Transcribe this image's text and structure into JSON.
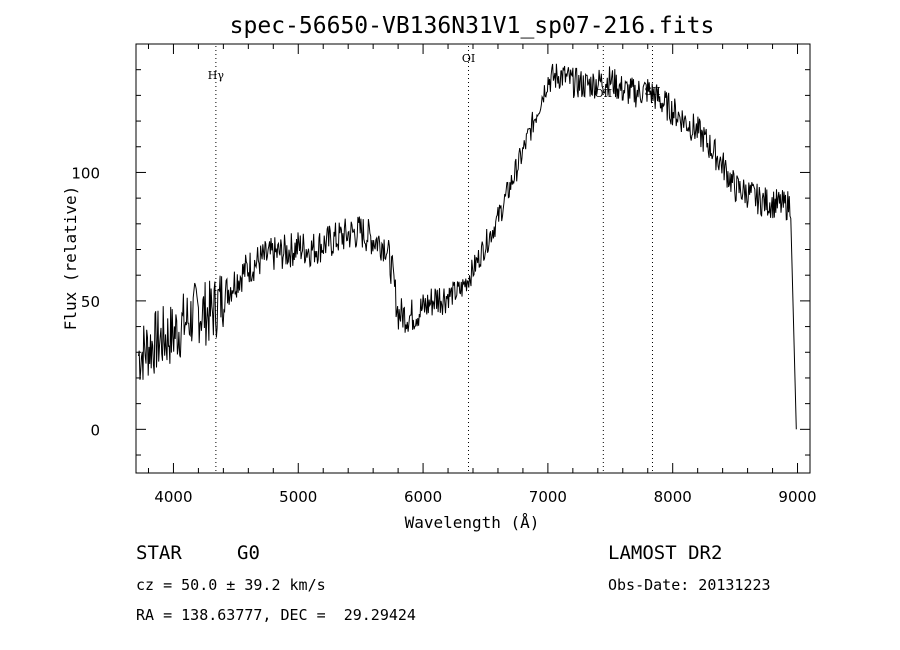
{
  "chart_data": {
    "type": "line",
    "title": "spec-56650-VB136N31V1_sp07-216.fits",
    "xlabel": "Wavelength (Å)",
    "ylabel": "Flux (relative)",
    "xlim": [
      3700,
      9100
    ],
    "ylim": [
      -17,
      150
    ],
    "x_ticks": [
      4000,
      5000,
      6000,
      7000,
      8000,
      9000
    ],
    "y_ticks": [
      0,
      50,
      100
    ],
    "grid": false,
    "series": [
      {
        "x": [
          3700,
          3800,
          3900,
          4000,
          4100,
          4200,
          4300,
          4400,
          4500,
          4600,
          4700,
          4800,
          4900,
          5000,
          5100,
          5200,
          5300,
          5400,
          5500,
          5600,
          5700,
          5750,
          5800,
          5900,
          6000,
          6100,
          6200,
          6300,
          6400,
          6500,
          6600,
          6700,
          6800,
          6900,
          7000,
          7100,
          7200,
          7300,
          7400,
          7500,
          7600,
          7700,
          7800,
          7900,
          8000,
          8100,
          8200,
          8300,
          8400,
          8500,
          8600,
          8700,
          8800,
          8900,
          8950,
          8990
        ],
        "y": [
          28,
          32,
          35,
          37,
          42,
          46,
          45,
          52,
          58,
          63,
          66,
          68,
          69,
          71,
          70,
          72,
          74,
          76,
          77,
          74,
          72,
          62,
          45,
          44,
          47,
          51,
          52,
          54,
          62,
          72,
          82,
          95,
          108,
          122,
          136,
          138,
          135,
          134,
          135,
          136,
          132,
          131,
          132,
          128,
          124,
          120,
          116,
          110,
          103,
          94,
          92,
          89,
          88,
          87,
          88,
          0
        ]
      }
    ],
    "annotations": [
      {
        "label": "Hγ",
        "x": 4340
      },
      {
        "label": "OI",
        "x": 6364
      },
      {
        "label": "OII",
        "x": 7444
      },
      {
        "label": "SII",
        "x": 7838
      }
    ]
  },
  "info": {
    "object_class": "STAR",
    "subclass": "G0",
    "survey": "LAMOST DR2",
    "redshift": "cz = 50.0 ± 39.2 km/s",
    "obs_date": "Obs-Date: 20131223",
    "coords": "RA = 138.63777, DEC =  29.29424"
  }
}
